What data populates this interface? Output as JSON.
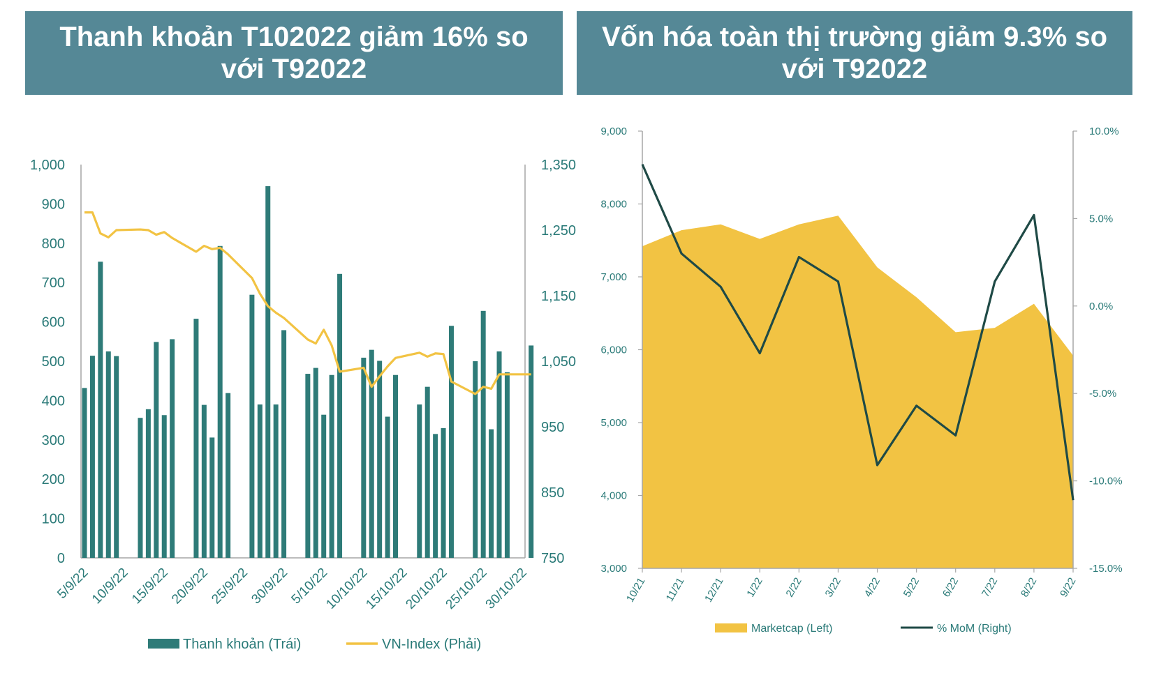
{
  "banners": {
    "left": "Thanh khoản T102022 giảm 16% so với T92022",
    "right": "Vốn hóa toàn thị trường giảm 9.3% so với T92022"
  },
  "colors": {
    "banner_bg": "#558896",
    "bar": "#2e7b78",
    "vnindex_line": "#f2c343",
    "area": "#f2c343",
    "mom_line": "#1f4a46",
    "tick_text": "#2a7a78",
    "axis": "#a6a6a6"
  },
  "chart_data": [
    {
      "type": "bar",
      "title": "Thanh khoản T102022 giảm 16% so với T92022",
      "x_day_start": 5,
      "x_day_end": 60,
      "xtick_days": [
        5,
        10,
        15,
        20,
        25,
        30,
        35,
        40,
        45,
        50,
        55,
        60
      ],
      "xtick_labels": [
        "5/9/22",
        "10/9/22",
        "15/9/22",
        "20/9/22",
        "25/9/22",
        "30/9/22",
        "5/10/22",
        "10/10/22",
        "15/10/22",
        "20/10/22",
        "25/10/22",
        "30/10/22"
      ],
      "ylim_left": [
        0,
        1000
      ],
      "yticks_left": [
        "0",
        "100",
        "200",
        "300",
        "400",
        "500",
        "600",
        "700",
        "800",
        "900",
        "1,000"
      ],
      "ylim_right": [
        750,
        1350
      ],
      "yticks_right": [
        "750",
        "850",
        "950",
        "1,050",
        "1,150",
        "1,250",
        "1,350"
      ],
      "series": [
        {
          "name": "Thanh khoản (Trái)",
          "type": "bar",
          "axis": "left",
          "days": [
            5,
            6,
            7,
            8,
            9,
            12,
            13,
            14,
            15,
            16,
            19,
            20,
            21,
            22,
            23,
            26,
            27,
            28,
            29,
            30,
            33,
            34,
            35,
            36,
            37,
            40,
            41,
            42,
            43,
            44,
            47,
            48,
            49,
            50,
            51,
            54,
            55,
            56,
            57,
            58,
            61
          ],
          "values": [
            432,
            514,
            753,
            525,
            513,
            356,
            378,
            549,
            363,
            556,
            608,
            389,
            306,
            793,
            419,
            669,
            390,
            945,
            390,
            579,
            468,
            483,
            364,
            465,
            722,
            509,
            529,
            501,
            359,
            465,
            390,
            435,
            315,
            330,
            590,
            500,
            628,
            327,
            525,
            472,
            540
          ]
        },
        {
          "name": "VN-Index (Phải)",
          "type": "line",
          "axis": "right",
          "days": [
            5,
            6,
            7,
            8,
            9,
            12,
            13,
            14,
            15,
            16,
            19,
            20,
            21,
            22,
            23,
            26,
            27,
            28,
            29,
            30,
            33,
            34,
            35,
            36,
            37,
            40,
            41,
            42,
            43,
            44,
            47,
            48,
            49,
            50,
            51,
            54,
            55,
            56,
            57,
            58,
            61
          ],
          "values": [
            1277,
            1277,
            1245,
            1239,
            1250,
            1251,
            1250,
            1243,
            1247,
            1238,
            1217,
            1226,
            1221,
            1223,
            1213,
            1177,
            1153,
            1134,
            1124,
            1116,
            1083,
            1077,
            1098,
            1074,
            1034,
            1040,
            1011,
            1027,
            1042,
            1055,
            1063,
            1057,
            1062,
            1061,
            1019,
            1000,
            1011,
            1008,
            1030,
            1030,
            1030
          ]
        }
      ],
      "legend": [
        "Thanh khoản (Trái)",
        "VN-Index (Phải)"
      ],
      "legend_position": "bottom"
    },
    {
      "type": "area",
      "title": "Vốn hóa toàn thị trường giảm 9.3% so với T92022",
      "categories": [
        "10/21",
        "11/21",
        "12/21",
        "1/22",
        "2/22",
        "3/22",
        "4/22",
        "5/22",
        "6/22",
        "7/22",
        "8/22",
        "9/22"
      ],
      "ylim_left": [
        3000,
        9000
      ],
      "yticks_left": [
        "3,000",
        "4,000",
        "5,000",
        "6,000",
        "7,000",
        "8,000",
        "9,000"
      ],
      "ylim_right": [
        -15,
        10
      ],
      "yticks_right": [
        "-15.0%",
        "-10.0%",
        "-5.0%",
        "0.0%",
        "5.0%",
        "10.0%"
      ],
      "series": [
        {
          "name": "Marketcap (Left)",
          "type": "area",
          "axis": "left",
          "values": [
            7420,
            7640,
            7720,
            7520,
            7720,
            7840,
            7130,
            6720,
            6240,
            6300,
            6630,
            5920
          ]
        },
        {
          "name": "% MoM (Right)",
          "type": "line",
          "axis": "right",
          "values": [
            8.1,
            3.0,
            1.1,
            -2.7,
            2.8,
            1.4,
            -9.1,
            -5.7,
            -7.4,
            1.4,
            5.2,
            -11.1
          ]
        }
      ],
      "legend": [
        "Marketcap (Left)",
        "% MoM (Right)"
      ],
      "legend_position": "bottom"
    }
  ]
}
